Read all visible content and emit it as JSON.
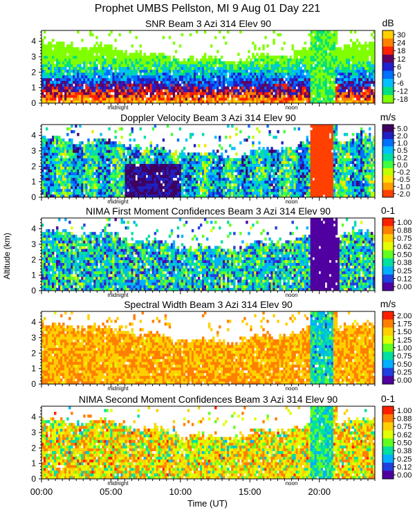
{
  "header": {
    "title": "Prophet  UMBS Pellston, MI    9 Aug 01 Day 221"
  },
  "xaxis": {
    "label": "Time (UT)",
    "tick_labels": [
      "00:00",
      "05:00",
      "10:00",
      "15:00",
      "20:00"
    ],
    "tick_hours": [
      0,
      5,
      10,
      15,
      20
    ],
    "range_hours": [
      0,
      24
    ],
    "marker_labels": [
      "midnight",
      "noon"
    ],
    "marker_hours": [
      5.5,
      18.0
    ]
  },
  "yaxis": {
    "label": "Altitude (km)",
    "tick_labels": [
      "0",
      "1",
      "2",
      "3",
      "4"
    ],
    "range_km": [
      0,
      4.7
    ]
  },
  "colors": {
    "missing": "#ffffff",
    "frame": "#000000"
  },
  "chart_data": [
    {
      "type": "heatmap",
      "id": "snr",
      "title": "SNR Beam 3 Azi 314 Elev 90",
      "unit": "dB",
      "colorbar_labels": [
        "30",
        "24",
        "18",
        "12",
        "6",
        "0",
        "-6",
        "-12",
        "-18"
      ],
      "colorbar_colors": [
        "#ffd000",
        "#ff8000",
        "#ff2000",
        "#600060",
        "#2020d0",
        "#0070ff",
        "#00c0ff",
        "#00e080",
        "#80ff00"
      ],
      "xlim": [
        0,
        24
      ],
      "ylim": [
        0,
        4.7
      ]
    },
    {
      "type": "heatmap",
      "id": "doppler",
      "title": "Doppler Velocity Beam 3 Azi 314 Elev 90",
      "unit": "m/s",
      "colorbar_labels": [
        "5.0",
        "2.0",
        "1.0",
        "0.5",
        "0.2",
        "0.0",
        "-0.2",
        "-0.5",
        "-1.0",
        "-2.0"
      ],
      "colorbar_colors": [
        "#400060",
        "#2020c0",
        "#0070ff",
        "#00c0ff",
        "#00e0a0",
        "#40ff40",
        "#c0ff00",
        "#ffe000",
        "#ffa000",
        "#ff4000"
      ],
      "xlim": [
        0,
        24
      ],
      "ylim": [
        0,
        4.7
      ]
    },
    {
      "type": "heatmap",
      "id": "first-moment",
      "title": "NIMA First Moment Confidences Beam 3 Azi 314 Elev 90",
      "unit": "0-1",
      "colorbar_labels": [
        "1.00",
        "0.88",
        "0.75",
        "0.62",
        "0.50",
        "0.38",
        "0.25",
        "0.12",
        "0.00"
      ],
      "colorbar_colors": [
        "#ff2000",
        "#ff8000",
        "#ffd000",
        "#e0ff00",
        "#60ff20",
        "#00e0a0",
        "#00b0ff",
        "#2040e0",
        "#5000a0"
      ],
      "xlim": [
        0,
        24
      ],
      "ylim": [
        0,
        4.7
      ]
    },
    {
      "type": "heatmap",
      "id": "spectral-width",
      "title": "Spectral Width Beam 3 Azi 314 Elev 90",
      "unit": "m/s",
      "colorbar_labels": [
        "2.00",
        "1.75",
        "1.50",
        "1.25",
        "1.00",
        "0.75",
        "0.50",
        "0.25",
        "0.00"
      ],
      "colorbar_colors": [
        "#ff2000",
        "#ff8000",
        "#ffd000",
        "#e0ff00",
        "#60ff20",
        "#00e0a0",
        "#00b0ff",
        "#2040e0",
        "#5000a0"
      ],
      "xlim": [
        0,
        24
      ],
      "ylim": [
        0,
        4.7
      ]
    },
    {
      "type": "heatmap",
      "id": "second-moment",
      "title": "NIMA Second Moment Confidences Beam 3 Azi 314 Elev 90",
      "unit": "0-1",
      "colorbar_labels": [
        "1.00",
        "0.88",
        "0.75",
        "0.62",
        "0.50",
        "0.38",
        "0.25",
        "0.12",
        "0.00"
      ],
      "colorbar_colors": [
        "#ff2000",
        "#ff8000",
        "#ffd000",
        "#e0ff00",
        "#60ff20",
        "#00e0a0",
        "#00b0ff",
        "#2040e0",
        "#5000a0"
      ],
      "xlim": [
        0,
        24
      ],
      "ylim": [
        0,
        4.7
      ]
    }
  ]
}
